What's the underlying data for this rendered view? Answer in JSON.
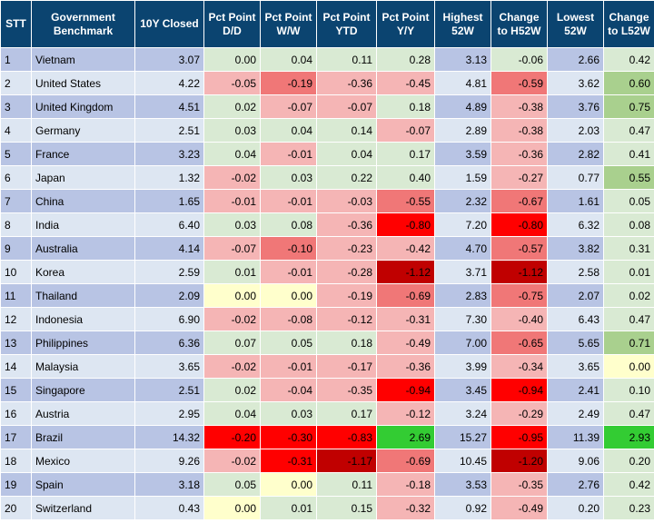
{
  "columns": [
    "STT",
    "Government Benchmark",
    "10Y Closed",
    "Pct Point D/D",
    "Pct Point W/W",
    "Pct Point YTD",
    "Pct Point Y/Y",
    "Highest 52W",
    "Change to H52W",
    "Lowest 52W",
    "Change to L52W"
  ],
  "colors": {
    "header_bg": "#0b4470",
    "header_text": "#ffffff",
    "band_blue": "#b8c4e4",
    "band_light": "#dde6f2",
    "neutral": "#d9ead3",
    "red_light": "#f5b5b5",
    "red_mid": "#f07777",
    "red_strong": "#ff0000",
    "red_dark": "#c00000",
    "yellow": "#ffffcc",
    "green_light": "#a9d08e",
    "green_strong": "#33cc33"
  },
  "rows": [
    {
      "stt": "1",
      "name": "Vietnam",
      "y10": "3.07",
      "dd": "0.00",
      "ww": "0.04",
      "ytd": "0.11",
      "yy": "0.28",
      "hi": "3.13",
      "chi": "-0.06",
      "lo": "2.66",
      "clo": "0.42"
    },
    {
      "stt": "2",
      "name": "United States",
      "y10": "4.22",
      "dd": "-0.05",
      "ww": "-0.19",
      "ytd": "-0.36",
      "yy": "-0.45",
      "hi": "4.81",
      "chi": "-0.59",
      "lo": "3.62",
      "clo": "0.60"
    },
    {
      "stt": "3",
      "name": "United Kingdom",
      "y10": "4.51",
      "dd": "0.02",
      "ww": "-0.07",
      "ytd": "-0.07",
      "yy": "0.18",
      "hi": "4.89",
      "chi": "-0.38",
      "lo": "3.76",
      "clo": "0.75"
    },
    {
      "stt": "4",
      "name": "Germany",
      "y10": "2.51",
      "dd": "0.03",
      "ww": "0.04",
      "ytd": "0.14",
      "yy": "-0.07",
      "hi": "2.89",
      "chi": "-0.38",
      "lo": "2.03",
      "clo": "0.47"
    },
    {
      "stt": "5",
      "name": "France",
      "y10": "3.23",
      "dd": "0.04",
      "ww": "-0.01",
      "ytd": "0.04",
      "yy": "0.17",
      "hi": "3.59",
      "chi": "-0.36",
      "lo": "2.82",
      "clo": "0.41"
    },
    {
      "stt": "6",
      "name": "Japan",
      "y10": "1.32",
      "dd": "-0.02",
      "ww": "0.03",
      "ytd": "0.22",
      "yy": "0.40",
      "hi": "1.59",
      "chi": "-0.27",
      "lo": "0.77",
      "clo": "0.55"
    },
    {
      "stt": "7",
      "name": "China",
      "y10": "1.65",
      "dd": "-0.01",
      "ww": "-0.01",
      "ytd": "-0.03",
      "yy": "-0.55",
      "hi": "2.32",
      "chi": "-0.67",
      "lo": "1.61",
      "clo": "0.05"
    },
    {
      "stt": "8",
      "name": "India",
      "y10": "6.40",
      "dd": "0.03",
      "ww": "0.08",
      "ytd": "-0.36",
      "yy": "-0.80",
      "hi": "7.20",
      "chi": "-0.80",
      "lo": "6.32",
      "clo": "0.08"
    },
    {
      "stt": "9",
      "name": "Australia",
      "y10": "4.14",
      "dd": "-0.07",
      "ww": "-0.10",
      "ytd": "-0.23",
      "yy": "-0.42",
      "hi": "4.70",
      "chi": "-0.57",
      "lo": "3.82",
      "clo": "0.31"
    },
    {
      "stt": "10",
      "name": "Korea",
      "y10": "2.59",
      "dd": "0.01",
      "ww": "-0.01",
      "ytd": "-0.28",
      "yy": "-1.12",
      "hi": "3.71",
      "chi": "-1.12",
      "lo": "2.58",
      "clo": "0.01"
    },
    {
      "stt": "11",
      "name": "Thailand",
      "y10": "2.09",
      "dd": "0.00",
      "ww": "0.00",
      "ytd": "-0.19",
      "yy": "-0.69",
      "hi": "2.83",
      "chi": "-0.75",
      "lo": "2.07",
      "clo": "0.02"
    },
    {
      "stt": "12",
      "name": "Indonesia",
      "y10": "6.90",
      "dd": "-0.02",
      "ww": "-0.08",
      "ytd": "-0.12",
      "yy": "-0.31",
      "hi": "7.30",
      "chi": "-0.40",
      "lo": "6.43",
      "clo": "0.47"
    },
    {
      "stt": "13",
      "name": "Philippines",
      "y10": "6.36",
      "dd": "0.07",
      "ww": "0.05",
      "ytd": "0.18",
      "yy": "-0.49",
      "hi": "7.00",
      "chi": "-0.65",
      "lo": "5.65",
      "clo": "0.71"
    },
    {
      "stt": "14",
      "name": "Malaysia",
      "y10": "3.65",
      "dd": "-0.02",
      "ww": "-0.01",
      "ytd": "-0.17",
      "yy": "-0.36",
      "hi": "3.99",
      "chi": "-0.34",
      "lo": "3.65",
      "clo": "0.00"
    },
    {
      "stt": "15",
      "name": "Singapore",
      "y10": "2.51",
      "dd": "0.02",
      "ww": "-0.04",
      "ytd": "-0.35",
      "yy": "-0.94",
      "hi": "3.45",
      "chi": "-0.94",
      "lo": "2.41",
      "clo": "0.10"
    },
    {
      "stt": "16",
      "name": "Austria",
      "y10": "2.95",
      "dd": "0.04",
      "ww": "0.03",
      "ytd": "0.17",
      "yy": "-0.12",
      "hi": "3.24",
      "chi": "-0.29",
      "lo": "2.49",
      "clo": "0.47"
    },
    {
      "stt": "17",
      "name": "Brazil",
      "y10": "14.32",
      "dd": "-0.20",
      "ww": "-0.30",
      "ytd": "-0.83",
      "yy": "2.69",
      "hi": "15.27",
      "chi": "-0.95",
      "lo": "11.39",
      "clo": "2.93"
    },
    {
      "stt": "18",
      "name": "Mexico",
      "y10": "9.26",
      "dd": "-0.02",
      "ww": "-0.31",
      "ytd": "-1.17",
      "yy": "-0.69",
      "hi": "10.45",
      "chi": "-1.20",
      "lo": "9.06",
      "clo": "0.20"
    },
    {
      "stt": "19",
      "name": "Spain",
      "y10": "3.18",
      "dd": "0.05",
      "ww": "0.00",
      "ytd": "0.11",
      "yy": "-0.18",
      "hi": "3.53",
      "chi": "-0.35",
      "lo": "2.76",
      "clo": "0.42"
    },
    {
      "stt": "20",
      "name": "Switzerland",
      "y10": "0.43",
      "dd": "0.00",
      "ww": "0.01",
      "ytd": "0.15",
      "yy": "-0.32",
      "hi": "0.92",
      "chi": "-0.49",
      "lo": "0.20",
      "clo": "0.23"
    }
  ],
  "cell_colors": [
    {
      "dd": "neutral",
      "ww": "neutral",
      "ytd": "neutral",
      "yy": "neutral",
      "chi": "neutral",
      "clo": "neutral"
    },
    {
      "dd": "red_light",
      "ww": "red_mid",
      "ytd": "red_light",
      "yy": "red_light",
      "chi": "red_mid",
      "clo": "green_light"
    },
    {
      "dd": "neutral",
      "ww": "red_light",
      "ytd": "red_light",
      "yy": "neutral",
      "chi": "red_light",
      "clo": "green_light"
    },
    {
      "dd": "neutral",
      "ww": "neutral",
      "ytd": "neutral",
      "yy": "red_light",
      "chi": "red_light",
      "clo": "neutral"
    },
    {
      "dd": "neutral",
      "ww": "red_light",
      "ytd": "neutral",
      "yy": "neutral",
      "chi": "red_light",
      "clo": "neutral"
    },
    {
      "dd": "red_light",
      "ww": "neutral",
      "ytd": "neutral",
      "yy": "neutral",
      "chi": "red_light",
      "clo": "green_light"
    },
    {
      "dd": "red_light",
      "ww": "red_light",
      "ytd": "red_light",
      "yy": "red_mid",
      "chi": "red_mid",
      "clo": "neutral"
    },
    {
      "dd": "neutral",
      "ww": "neutral",
      "ytd": "red_light",
      "yy": "red_strong",
      "chi": "red_strong",
      "clo": "neutral"
    },
    {
      "dd": "red_light",
      "ww": "red_mid",
      "ytd": "red_light",
      "yy": "red_light",
      "chi": "red_mid",
      "clo": "neutral"
    },
    {
      "dd": "neutral",
      "ww": "red_light",
      "ytd": "red_light",
      "yy": "red_dark",
      "chi": "red_dark",
      "clo": "neutral"
    },
    {
      "dd": "yellow",
      "ww": "yellow",
      "ytd": "red_light",
      "yy": "red_mid",
      "chi": "red_mid",
      "clo": "neutral"
    },
    {
      "dd": "red_light",
      "ww": "red_light",
      "ytd": "red_light",
      "yy": "red_light",
      "chi": "red_light",
      "clo": "neutral"
    },
    {
      "dd": "neutral",
      "ww": "neutral",
      "ytd": "neutral",
      "yy": "red_light",
      "chi": "red_mid",
      "clo": "green_light"
    },
    {
      "dd": "red_light",
      "ww": "red_light",
      "ytd": "red_light",
      "yy": "red_light",
      "chi": "red_light",
      "clo": "yellow"
    },
    {
      "dd": "neutral",
      "ww": "red_light",
      "ytd": "red_light",
      "yy": "red_strong",
      "chi": "red_strong",
      "clo": "neutral"
    },
    {
      "dd": "neutral",
      "ww": "neutral",
      "ytd": "neutral",
      "yy": "red_light",
      "chi": "red_light",
      "clo": "neutral"
    },
    {
      "dd": "red_strong",
      "ww": "red_strong",
      "ytd": "red_strong",
      "yy": "green_strong",
      "chi": "red_strong",
      "clo": "green_strong"
    },
    {
      "dd": "red_light",
      "ww": "red_strong",
      "ytd": "red_dark",
      "yy": "red_mid",
      "chi": "red_dark",
      "clo": "neutral"
    },
    {
      "dd": "neutral",
      "ww": "yellow",
      "ytd": "neutral",
      "yy": "red_light",
      "chi": "red_light",
      "clo": "neutral"
    },
    {
      "dd": "yellow",
      "ww": "neutral",
      "ytd": "neutral",
      "yy": "red_light",
      "chi": "red_light",
      "clo": "neutral"
    }
  ]
}
